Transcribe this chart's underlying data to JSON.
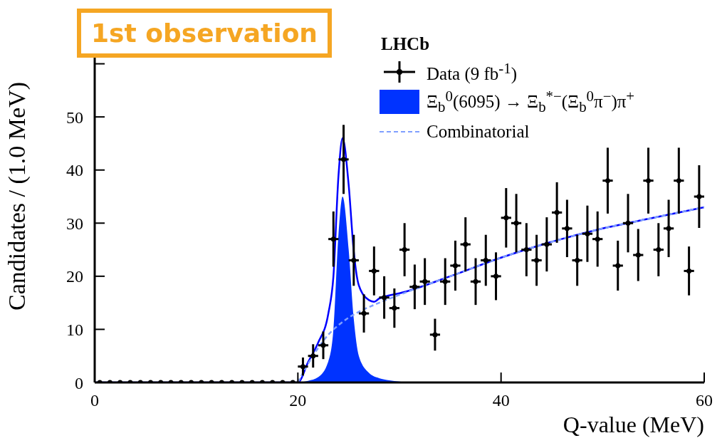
{
  "chart_data": {
    "type": "scatter",
    "xlabel": "Q-value (MeV)",
    "ylabel": "Candidates / (1.0 MeV)",
    "annotations": [
      "1st observation",
      "LHCb"
    ],
    "xlim": [
      0,
      60
    ],
    "xticks": [
      0,
      20,
      40,
      60
    ],
    "ylim": [
      0,
      70
    ],
    "yticks": [
      0,
      10,
      20,
      30,
      40,
      50,
      {
        "value": 60,
        "label": null
      }
    ],
    "legend": "top right",
    "grid": false,
    "series": [
      {
        "type": "area",
        "name": "Ξ$_{b}$$^{0}$(6095) → Ξ$_{b}$$^{*−}$(Ξ$_{b}$$^{0}$π$^{−}$)π$^{+}$",
        "color": "#0033ff",
        "x": [
          20,
          21,
          22,
          23,
          23.5,
          24,
          24.4,
          25,
          25.5,
          26,
          27,
          28,
          29,
          31
        ],
        "values": [
          0,
          0.3,
          1,
          4,
          10,
          28,
          35,
          25,
          12,
          5,
          1.8,
          0.8,
          0.4,
          0
        ]
      },
      {
        "type": "line",
        "color": "#0000ff",
        "x": [
          0,
          20,
          21,
          22,
          23,
          23.5,
          24,
          24.4,
          25,
          25.5,
          26,
          27,
          27.5,
          28,
          29,
          30,
          35,
          40,
          45,
          50,
          55,
          60
        ],
        "values": [
          0,
          0,
          3.8,
          7.5,
          13,
          20,
          39,
          46,
          37.2,
          24.7,
          18.3,
          15.5,
          15.2,
          15.8,
          16.4,
          16.8,
          20,
          23.5,
          26.5,
          29,
          31,
          33
        ]
      },
      {
        "type": "line",
        "name": "Combinatorial",
        "color": "#7f9fff",
        "line_style": "dashed",
        "x": [
          20,
          21,
          22,
          23,
          24,
          25,
          26,
          28,
          30,
          35,
          40,
          45,
          50,
          55,
          60
        ],
        "values": [
          0,
          3.5,
          6.5,
          9,
          10.8,
          12.2,
          13.3,
          15,
          16.5,
          20,
          23.5,
          26.5,
          29,
          31,
          33
        ]
      },
      {
        "name": "Data (9 fb$^{-1}$)",
        "color": "#000000",
        "marker": "circle",
        "x": [
          0.5,
          1.5,
          2.5,
          3.5,
          4.5,
          5.5,
          6.5,
          7.5,
          8.5,
          9.5,
          10.5,
          11.5,
          12.5,
          13.5,
          14.5,
          15.5,
          16.5,
          17.5,
          18.5,
          19.5,
          20.5,
          21.5,
          22.5,
          23.5,
          24.5,
          25.5,
          26.5,
          27.5,
          28.5,
          29.5,
          30.5,
          31.5,
          32.5,
          33.5,
          34.5,
          35.5,
          36.5,
          37.5,
          38.5,
          39.5,
          40.5,
          41.5,
          42.5,
          43.5,
          44.5,
          45.5,
          46.5,
          47.5,
          48.5,
          49.5,
          50.5,
          51.5,
          52.5,
          53.5,
          54.5,
          55.5,
          56.5,
          57.5,
          58.5,
          59.5
        ],
        "values": [
          0,
          0,
          0,
          0,
          0,
          0,
          0,
          0,
          0,
          0,
          0,
          0,
          0,
          0,
          0,
          0,
          0,
          0,
          0,
          0,
          3,
          5,
          7,
          27,
          42,
          23,
          13,
          21,
          16,
          14,
          25,
          18,
          19,
          9,
          19,
          22,
          26,
          19,
          23,
          20,
          31,
          30,
          25,
          23,
          26,
          32,
          29,
          23,
          28,
          27,
          38,
          22,
          30,
          24,
          38,
          25,
          29,
          38,
          21,
          35
        ],
        "errors": [
          null,
          null,
          null,
          null,
          null,
          null,
          null,
          null,
          null,
          null,
          null,
          null,
          null,
          null,
          null,
          null,
          null,
          null,
          null,
          null,
          1.7,
          2.2,
          2.6,
          5.2,
          6.5,
          4.8,
          3.6,
          4.6,
          4,
          3.7,
          5,
          4.2,
          4.4,
          3,
          4.4,
          4.7,
          5.1,
          4.4,
          4.8,
          4.5,
          5.6,
          5.5,
          5,
          4.8,
          5.1,
          5.7,
          5.4,
          4.8,
          5.3,
          5.2,
          6.2,
          4.7,
          5.5,
          4.9,
          6.2,
          5,
          5.4,
          6.2,
          4.6,
          5.9
        ],
        "xerrors": [
          null,
          null,
          null,
          null,
          null,
          null,
          null,
          null,
          null,
          null,
          null,
          null,
          null,
          null,
          null,
          null,
          null,
          null,
          null,
          null,
          0.5,
          0.5,
          0.5,
          0.5,
          0.5,
          0.5,
          0.5,
          0.5,
          0.5,
          0.5,
          0.5,
          0.5,
          0.5,
          0.5,
          0.5,
          0.5,
          0.5,
          0.5,
          0.5,
          0.5,
          0.5,
          0.5,
          0.5,
          0.5,
          0.5,
          0.5,
          0.5,
          0.5,
          0.5,
          0.5,
          0.5,
          0.5,
          0.5,
          0.5,
          0.5,
          0.5,
          0.5,
          0.5,
          0.5,
          0.5
        ]
      }
    ]
  }
}
